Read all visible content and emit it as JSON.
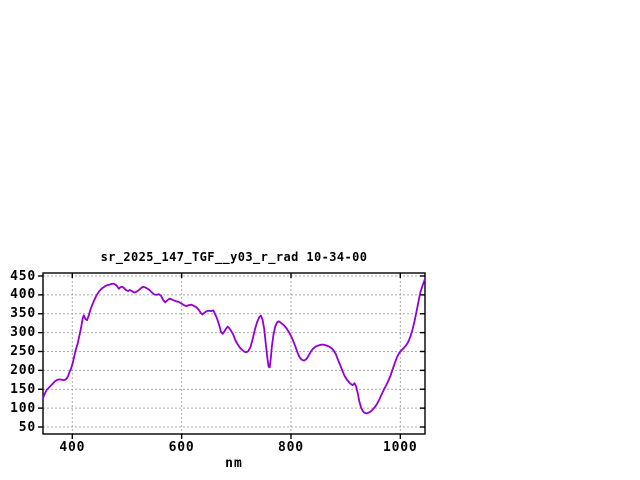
{
  "chart_data": {
    "type": "line",
    "title": "sr_2025_147_TGF__y03_r_rad 10-34-00",
    "xlabel": "nm",
    "ylabel": "",
    "xlim": [
      346,
      1045
    ],
    "ylim": [
      50,
      450
    ],
    "x_ticks": [
      400,
      600,
      800,
      1000
    ],
    "y_ticks": [
      50,
      100,
      150,
      200,
      250,
      300,
      350,
      400,
      450
    ],
    "grid": true,
    "legend_position": "none",
    "line_color": "#9400d3",
    "grid_color": "#aaaaaa",
    "border_color": "#000000",
    "background_color": "#ffffff",
    "series": [
      {
        "name": "sr_2025_147_TGF__y03_r_rad",
        "points": [
          [
            346,
            125
          ],
          [
            349,
            136
          ],
          [
            353,
            148
          ],
          [
            357,
            154
          ],
          [
            361,
            160
          ],
          [
            365,
            166
          ],
          [
            369,
            172
          ],
          [
            373,
            175
          ],
          [
            377,
            176
          ],
          [
            381,
            175
          ],
          [
            385,
            174
          ],
          [
            389,
            177
          ],
          [
            392,
            184
          ],
          [
            395,
            196
          ],
          [
            398,
            206
          ],
          [
            401,
            220
          ],
          [
            404,
            240
          ],
          [
            407,
            258
          ],
          [
            410,
            272
          ],
          [
            413,
            292
          ],
          [
            416,
            312
          ],
          [
            419,
            338
          ],
          [
            421,
            346
          ],
          [
            424,
            336
          ],
          [
            427,
            333
          ],
          [
            430,
            345
          ],
          [
            433,
            360
          ],
          [
            436,
            372
          ],
          [
            440,
            386
          ],
          [
            444,
            398
          ],
          [
            448,
            407
          ],
          [
            452,
            414
          ],
          [
            456,
            419
          ],
          [
            460,
            423
          ],
          [
            464,
            426
          ],
          [
            468,
            427
          ],
          [
            472,
            429
          ],
          [
            476,
            430
          ],
          [
            479,
            427
          ],
          [
            482,
            423
          ],
          [
            485,
            416
          ],
          [
            488,
            420
          ],
          [
            491,
            422
          ],
          [
            494,
            419
          ],
          [
            498,
            413
          ],
          [
            502,
            410
          ],
          [
            505,
            413
          ],
          [
            509,
            410
          ],
          [
            513,
            406
          ],
          [
            517,
            408
          ],
          [
            521,
            412
          ],
          [
            525,
            417
          ],
          [
            529,
            421
          ],
          [
            533,
            420
          ],
          [
            537,
            417
          ],
          [
            541,
            413
          ],
          [
            546,
            406
          ],
          [
            550,
            401
          ],
          [
            554,
            400
          ],
          [
            558,
            402
          ],
          [
            562,
            398
          ],
          [
            566,
            387
          ],
          [
            570,
            380
          ],
          [
            574,
            386
          ],
          [
            578,
            390
          ],
          [
            582,
            388
          ],
          [
            586,
            385
          ],
          [
            590,
            383
          ],
          [
            595,
            381
          ],
          [
            600,
            377
          ],
          [
            605,
            372
          ],
          [
            609,
            370
          ],
          [
            613,
            373
          ],
          [
            618,
            374
          ],
          [
            622,
            371
          ],
          [
            627,
            367
          ],
          [
            631,
            361
          ],
          [
            635,
            352
          ],
          [
            638,
            348
          ],
          [
            642,
            353
          ],
          [
            646,
            357
          ],
          [
            650,
            358
          ],
          [
            654,
            357
          ],
          [
            658,
            359
          ],
          [
            661,
            350
          ],
          [
            665,
            336
          ],
          [
            669,
            318
          ],
          [
            672,
            302
          ],
          [
            675,
            297
          ],
          [
            678,
            303
          ],
          [
            681,
            310
          ],
          [
            684,
            316
          ],
          [
            687,
            312
          ],
          [
            690,
            306
          ],
          [
            694,
            296
          ],
          [
            698,
            281
          ],
          [
            702,
            270
          ],
          [
            706,
            261
          ],
          [
            710,
            255
          ],
          [
            714,
            250
          ],
          [
            718,
            248
          ],
          [
            722,
            251
          ],
          [
            726,
            262
          ],
          [
            730,
            283
          ],
          [
            734,
            308
          ],
          [
            738,
            328
          ],
          [
            742,
            341
          ],
          [
            745,
            345
          ],
          [
            748,
            334
          ],
          [
            751,
            310
          ],
          [
            754,
            270
          ],
          [
            757,
            230
          ],
          [
            759,
            210
          ],
          [
            761,
            208
          ],
          [
            763,
            232
          ],
          [
            765,
            262
          ],
          [
            768,
            295
          ],
          [
            771,
            315
          ],
          [
            774,
            326
          ],
          [
            777,
            330
          ],
          [
            780,
            328
          ],
          [
            784,
            323
          ],
          [
            788,
            318
          ],
          [
            792,
            311
          ],
          [
            796,
            302
          ],
          [
            800,
            291
          ],
          [
            804,
            278
          ],
          [
            808,
            263
          ],
          [
            812,
            247
          ],
          [
            816,
            234
          ],
          [
            820,
            228
          ],
          [
            824,
            226
          ],
          [
            828,
            230
          ],
          [
            832,
            239
          ],
          [
            836,
            249
          ],
          [
            840,
            257
          ],
          [
            845,
            263
          ],
          [
            850,
            266
          ],
          [
            855,
            268
          ],
          [
            860,
            268
          ],
          [
            865,
            266
          ],
          [
            870,
            263
          ],
          [
            874,
            259
          ],
          [
            878,
            253
          ],
          [
            882,
            243
          ],
          [
            886,
            228
          ],
          [
            890,
            214
          ],
          [
            894,
            199
          ],
          [
            898,
            185
          ],
          [
            902,
            176
          ],
          [
            906,
            169
          ],
          [
            910,
            163
          ],
          [
            913,
            161
          ],
          [
            916,
            166
          ],
          [
            919,
            158
          ],
          [
            922,
            140
          ],
          [
            925,
            118
          ],
          [
            928,
            102
          ],
          [
            931,
            93
          ],
          [
            934,
            88
          ],
          [
            938,
            86
          ],
          [
            942,
            88
          ],
          [
            946,
            91
          ],
          [
            950,
            97
          ],
          [
            954,
            104
          ],
          [
            958,
            113
          ],
          [
            962,
            124
          ],
          [
            966,
            137
          ],
          [
            970,
            149
          ],
          [
            974,
            160
          ],
          [
            978,
            172
          ],
          [
            982,
            186
          ],
          [
            986,
            203
          ],
          [
            990,
            220
          ],
          [
            994,
            235
          ],
          [
            998,
            246
          ],
          [
            1002,
            253
          ],
          [
            1006,
            259
          ],
          [
            1010,
            265
          ],
          [
            1014,
            274
          ],
          [
            1018,
            288
          ],
          [
            1022,
            306
          ],
          [
            1026,
            330
          ],
          [
            1030,
            358
          ],
          [
            1034,
            388
          ],
          [
            1037,
            408
          ],
          [
            1040,
            422
          ],
          [
            1042,
            430
          ],
          [
            1044,
            438
          ],
          [
            1045,
            442
          ]
        ]
      }
    ]
  }
}
